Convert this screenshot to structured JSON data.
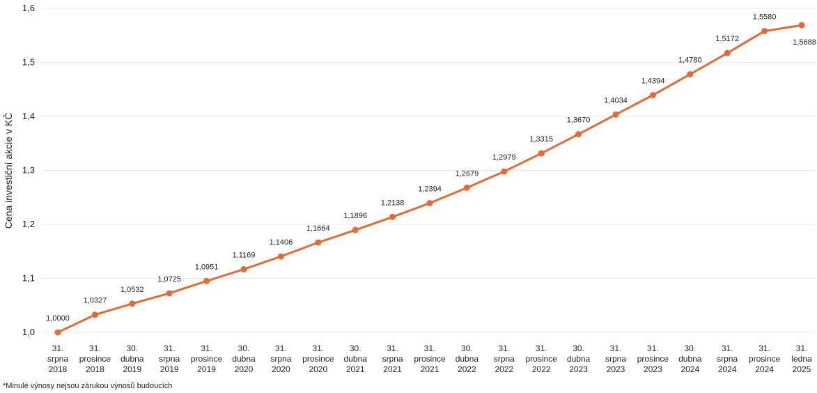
{
  "chart_data": {
    "type": "line",
    "ylabel": "Cena investiční akcie v KČ",
    "xlabel": "",
    "ylim": [
      1.0,
      1.6
    ],
    "yticks": [
      "1,0",
      "1,1",
      "1,2",
      "1,3",
      "1,4",
      "1,5",
      "1,6"
    ],
    "grid": true,
    "color": "#E46C34",
    "categories": [
      [
        "31.",
        "srpna",
        "2018"
      ],
      [
        "31.",
        "prosince",
        "2018"
      ],
      [
        "30.",
        "dubna",
        "2019"
      ],
      [
        "31.",
        "srpna",
        "2019"
      ],
      [
        "31.",
        "prosince",
        "2019"
      ],
      [
        "30.",
        "dubna",
        "2020"
      ],
      [
        "31.",
        "srpna",
        "2020"
      ],
      [
        "31.",
        "prosince",
        "2020"
      ],
      [
        "30.",
        "dubna",
        "2021"
      ],
      [
        "31.",
        "srpna",
        "2021"
      ],
      [
        "31.",
        "prosince",
        "2021"
      ],
      [
        "30.",
        "dubna",
        "2022"
      ],
      [
        "31.",
        "srpna",
        "2022"
      ],
      [
        "31.",
        "prosince",
        "2022"
      ],
      [
        "30.",
        "dubna",
        "2023"
      ],
      [
        "31.",
        "srpna",
        "2023"
      ],
      [
        "31.",
        "prosince",
        "2023"
      ],
      [
        "30.",
        "dubna",
        "2024"
      ],
      [
        "31.",
        "srpna",
        "2024"
      ],
      [
        "31.",
        "prosince",
        "2024"
      ],
      [
        "31.",
        "ledna",
        "2025"
      ]
    ],
    "values": [
      1.0,
      1.0327,
      1.0532,
      1.0725,
      1.0951,
      1.1169,
      1.1406,
      1.1664,
      1.1896,
      1.2138,
      1.2394,
      1.2679,
      1.2979,
      1.3315,
      1.367,
      1.4034,
      1.4394,
      1.478,
      1.5172,
      1.558,
      1.5688
    ],
    "data_labels": [
      "1,0000",
      "1,0327",
      "1,0532",
      "1,0725",
      "1,0951",
      "1,1169",
      "1,1406",
      "1,1664",
      "1,1896",
      "1,2138",
      "1,2394",
      "1,2679",
      "1,2979",
      "1,3315",
      "1,3670",
      "1,4034",
      "1,4394",
      "1,4780",
      "1,5172",
      "1,5580",
      "1,5688"
    ]
  },
  "footnote": "*Minulé výnosy nejsou zárukou výnosů budoucích"
}
